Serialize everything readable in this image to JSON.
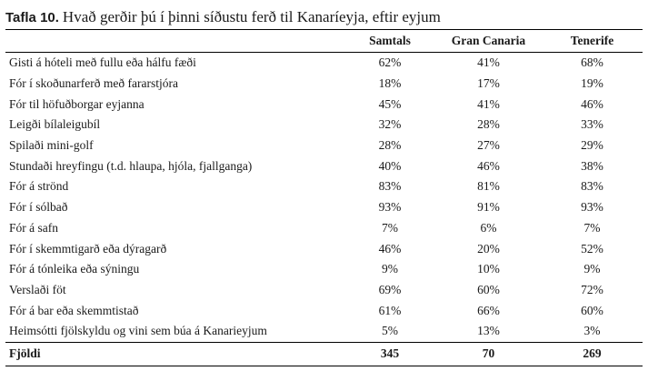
{
  "title": {
    "label": "Tafla 10.",
    "text": "Hvað gerðir þú í þinni síðustu ferð til Kanaríeyja, eftir eyjum"
  },
  "table": {
    "headers": [
      "",
      "Samtals",
      "Gran Canaria",
      "Tenerife"
    ],
    "rows": [
      {
        "label": "Gisti á hóteli með fullu eða hálfu fæði",
        "values": [
          "62%",
          "41%",
          "68%"
        ]
      },
      {
        "label": "Fór í skoðunarferð með fararstjóra",
        "values": [
          "18%",
          "17%",
          "19%"
        ]
      },
      {
        "label": "Fór til höfuðborgar eyjanna",
        "values": [
          "45%",
          "41%",
          "46%"
        ]
      },
      {
        "label": "Leigði bílaleigubíl",
        "values": [
          "32%",
          "28%",
          "33%"
        ]
      },
      {
        "label": "Spilaði mini-golf",
        "values": [
          "28%",
          "27%",
          "29%"
        ]
      },
      {
        "label": "Stundaði hreyfingu (t.d. hlaupa, hjóla, fjallganga)",
        "values": [
          "40%",
          "46%",
          "38%"
        ]
      },
      {
        "label": "Fór á strönd",
        "values": [
          "83%",
          "81%",
          "83%"
        ]
      },
      {
        "label": "Fór í sólbað",
        "values": [
          "93%",
          "91%",
          "93%"
        ]
      },
      {
        "label": "Fór á safn",
        "values": [
          "7%",
          "6%",
          "7%"
        ]
      },
      {
        "label": "Fór í skemmtigarð eða dýragarð",
        "values": [
          "46%",
          "20%",
          "52%"
        ]
      },
      {
        "label": "Fór á tónleika eða sýningu",
        "values": [
          "9%",
          "10%",
          "9%"
        ]
      },
      {
        "label": "Verslaði föt",
        "values": [
          "69%",
          "60%",
          "72%"
        ]
      },
      {
        "label": "Fór á bar eða skemmtistað",
        "values": [
          "61%",
          "66%",
          "60%"
        ]
      },
      {
        "label": "Heimsótti fjölskyldu og vini sem búa á Kanarieyjum",
        "values": [
          "5%",
          "13%",
          "3%"
        ]
      }
    ],
    "footer": {
      "label": "Fjöldi",
      "values": [
        "345",
        "70",
        "269"
      ]
    }
  }
}
